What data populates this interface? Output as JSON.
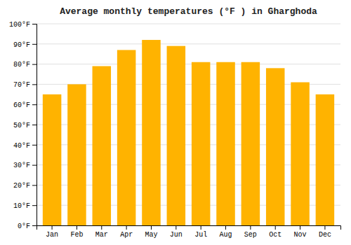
{
  "chart_data": {
    "type": "bar",
    "title": "Average monthly temperatures (°F ) in Gharghoda",
    "categories": [
      "Jan",
      "Feb",
      "Mar",
      "Apr",
      "May",
      "Jun",
      "Jul",
      "Aug",
      "Sep",
      "Oct",
      "Nov",
      "Dec"
    ],
    "values": [
      65,
      70,
      79,
      87,
      92,
      89,
      81,
      81,
      81,
      78,
      71,
      65
    ],
    "color": "#FFB300",
    "ylim": [
      0,
      100
    ],
    "yticks": [
      {
        "value": 0,
        "label": "0°F"
      },
      {
        "value": 10,
        "label": "10°F"
      },
      {
        "value": 20,
        "label": "20°F"
      },
      {
        "value": 30,
        "label": "30°F"
      },
      {
        "value": 40,
        "label": "40°F"
      },
      {
        "value": 50,
        "label": "50°F"
      },
      {
        "value": 60,
        "label": "60°F"
      },
      {
        "value": 70,
        "label": "70°F"
      },
      {
        "value": 80,
        "label": "80°F"
      },
      {
        "value": 90,
        "label": "90°F"
      },
      {
        "value": 100,
        "label": "100°F"
      }
    ],
    "grid": true
  }
}
